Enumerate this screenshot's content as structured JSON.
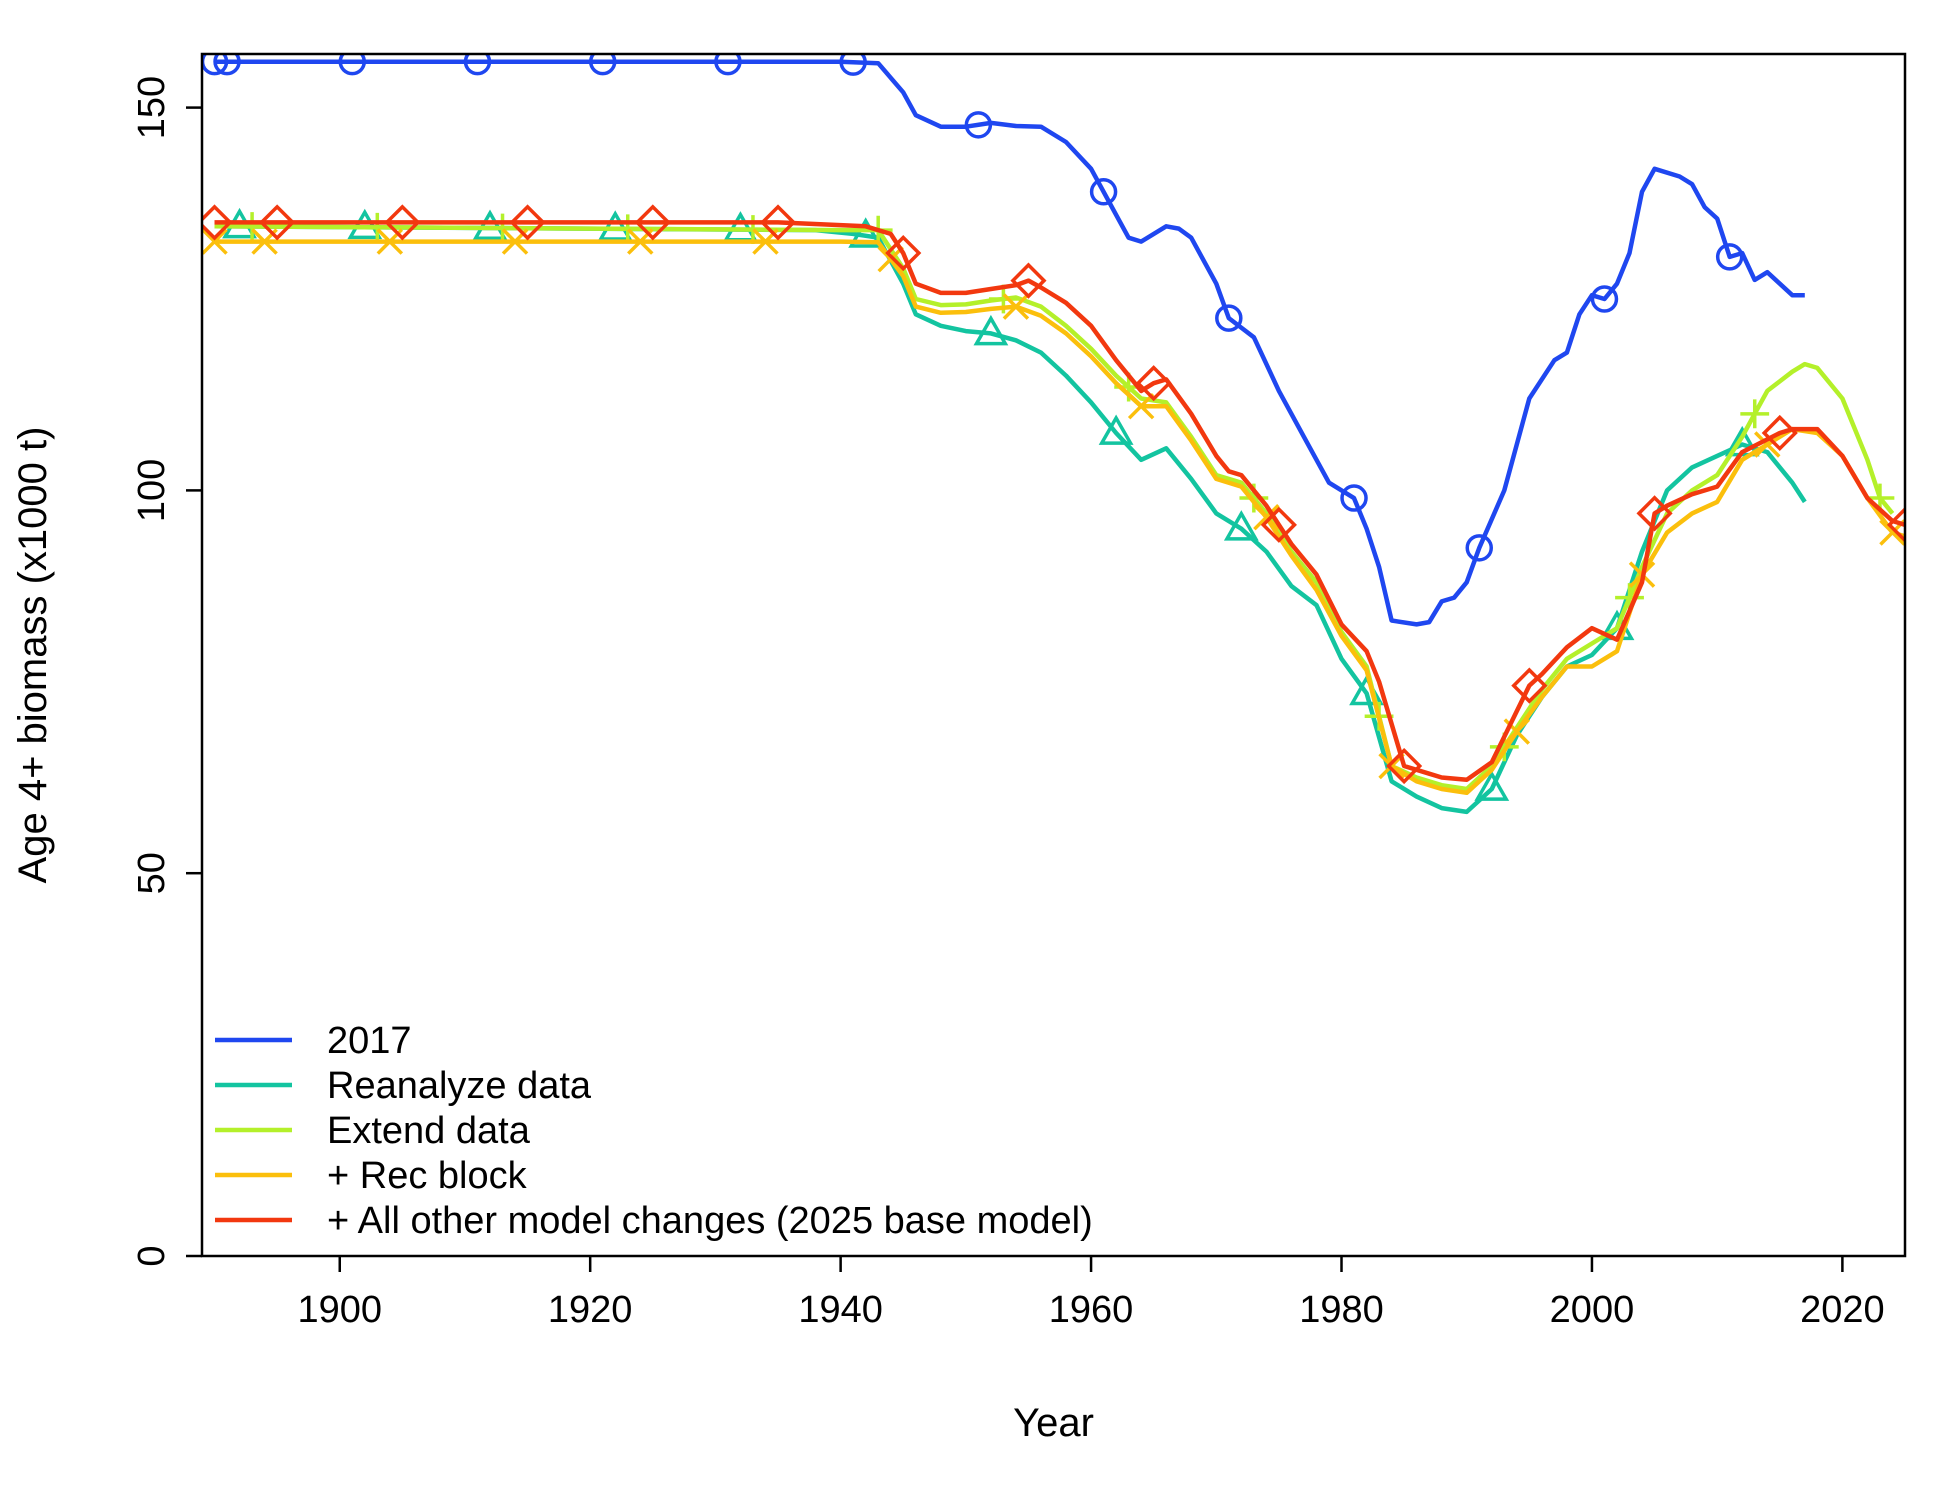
{
  "chart_data": {
    "type": "line",
    "xlabel": "Year",
    "ylabel": "Age 4+ biomass (x1000 t)",
    "xlim": [
      1889,
      2025
    ],
    "ylim": [
      0,
      157
    ],
    "xticks": [
      1900,
      1920,
      1940,
      1960,
      1980,
      2000,
      2020
    ],
    "yticks": [
      0,
      50,
      100,
      150
    ],
    "grid": false,
    "legend_position": "bottom-left",
    "series": [
      {
        "name": "2017",
        "color": "#1f47f0",
        "marker": "circle",
        "marker_x": [
          1890,
          1891,
          1901,
          1911,
          1921,
          1931,
          1941,
          1951,
          1961,
          1971,
          1981,
          1991,
          2001,
          2011
        ],
        "points": [
          [
            1890,
            156
          ],
          [
            1940,
            156
          ],
          [
            1943,
            155.8
          ],
          [
            1945,
            152
          ],
          [
            1946,
            149
          ],
          [
            1948,
            147.5
          ],
          [
            1950,
            147.5
          ],
          [
            1952,
            148
          ],
          [
            1954,
            147.6
          ],
          [
            1956,
            147.5
          ],
          [
            1958,
            145.5
          ],
          [
            1960,
            142
          ],
          [
            1962,
            136
          ],
          [
            1963,
            133
          ],
          [
            1964,
            132.5
          ],
          [
            1966,
            134.5
          ],
          [
            1967,
            134.2
          ],
          [
            1968,
            133
          ],
          [
            1970,
            127
          ],
          [
            1971,
            122.5
          ],
          [
            1973,
            120
          ],
          [
            1975,
            113
          ],
          [
            1977,
            107
          ],
          [
            1979,
            101
          ],
          [
            1981,
            99
          ],
          [
            1982,
            95
          ],
          [
            1983,
            90
          ],
          [
            1984,
            83
          ],
          [
            1986,
            82.5
          ],
          [
            1987,
            82.8
          ],
          [
            1988,
            85.5
          ],
          [
            1989,
            86
          ],
          [
            1990,
            88
          ],
          [
            1991,
            92.5
          ],
          [
            1993,
            100
          ],
          [
            1995,
            112
          ],
          [
            1997,
            117
          ],
          [
            1998,
            118
          ],
          [
            1999,
            123
          ],
          [
            2000,
            125.5
          ],
          [
            2001,
            125
          ],
          [
            2002,
            127
          ],
          [
            2003,
            131
          ],
          [
            2004,
            139
          ],
          [
            2005,
            142
          ],
          [
            2007,
            141
          ],
          [
            2008,
            140
          ],
          [
            2009,
            137
          ],
          [
            2010,
            135.5
          ],
          [
            2011,
            130.5
          ],
          [
            2012,
            131
          ],
          [
            2013,
            127.5
          ],
          [
            2014,
            128.5
          ],
          [
            2015,
            127
          ],
          [
            2016,
            125.5
          ],
          [
            2017,
            125.5
          ]
        ]
      },
      {
        "name": "Reanalyze data",
        "color": "#13c4a0",
        "marker": "triangle",
        "marker_x": [
          1892,
          1902,
          1912,
          1922,
          1932,
          1942,
          1952,
          1962,
          1972,
          1982,
          1992,
          2002,
          2012
        ],
        "points": [
          [
            1890,
            134.5
          ],
          [
            1938,
            134
          ],
          [
            1941,
            133.5
          ],
          [
            1943,
            133
          ],
          [
            1945,
            127
          ],
          [
            1946,
            123
          ],
          [
            1948,
            121.5
          ],
          [
            1950,
            120.8
          ],
          [
            1952,
            120.5
          ],
          [
            1954,
            119.6
          ],
          [
            1956,
            118
          ],
          [
            1958,
            115
          ],
          [
            1960,
            111.5
          ],
          [
            1962,
            107.5
          ],
          [
            1964,
            104
          ],
          [
            1966,
            105.5
          ],
          [
            1968,
            101.5
          ],
          [
            1970,
            97
          ],
          [
            1972,
            95
          ],
          [
            1974,
            92
          ],
          [
            1976,
            87.5
          ],
          [
            1978,
            85
          ],
          [
            1980,
            78
          ],
          [
            1982,
            73.5
          ],
          [
            1984,
            62
          ],
          [
            1986,
            60
          ],
          [
            1988,
            58.5
          ],
          [
            1990,
            58
          ],
          [
            1992,
            61
          ],
          [
            1994,
            68
          ],
          [
            1996,
            73
          ],
          [
            1998,
            77
          ],
          [
            2000,
            78.5
          ],
          [
            2002,
            82
          ],
          [
            2004,
            92
          ],
          [
            2006,
            100
          ],
          [
            2008,
            103
          ],
          [
            2010,
            104.5
          ],
          [
            2012,
            106
          ],
          [
            2014,
            105
          ],
          [
            2016,
            101
          ],
          [
            2017,
            98.5
          ]
        ]
      },
      {
        "name": "Extend data",
        "color": "#b4f02a",
        "marker": "plus",
        "marker_x": [
          1893,
          1903,
          1913,
          1923,
          1933,
          1943,
          1953,
          1963,
          1973,
          1983,
          1993,
          2003,
          2013,
          2023
        ],
        "points": [
          [
            1890,
            134.5
          ],
          [
            1940,
            134
          ],
          [
            1943,
            134
          ],
          [
            1945,
            129
          ],
          [
            1946,
            125
          ],
          [
            1948,
            124.2
          ],
          [
            1950,
            124.3
          ],
          [
            1952,
            124.8
          ],
          [
            1954,
            125.2
          ],
          [
            1956,
            124
          ],
          [
            1958,
            121.5
          ],
          [
            1960,
            118.5
          ],
          [
            1962,
            115
          ],
          [
            1964,
            112
          ],
          [
            1966,
            111.5
          ],
          [
            1968,
            107
          ],
          [
            1970,
            102
          ],
          [
            1972,
            101
          ],
          [
            1974,
            97
          ],
          [
            1976,
            92
          ],
          [
            1978,
            88
          ],
          [
            1980,
            81.5
          ],
          [
            1982,
            77
          ],
          [
            1984,
            64
          ],
          [
            1986,
            62.5
          ],
          [
            1988,
            61.5
          ],
          [
            1990,
            61
          ],
          [
            1992,
            64
          ],
          [
            1994,
            69
          ],
          [
            1996,
            74
          ],
          [
            1998,
            78
          ],
          [
            2000,
            80
          ],
          [
            2002,
            82
          ],
          [
            2004,
            90
          ],
          [
            2006,
            97
          ],
          [
            2008,
            100
          ],
          [
            2010,
            102
          ],
          [
            2012,
            107
          ],
          [
            2013,
            110
          ],
          [
            2014,
            113
          ],
          [
            2016,
            115.5
          ],
          [
            2017,
            116.5
          ],
          [
            2018,
            116
          ],
          [
            2020,
            112
          ],
          [
            2022,
            104
          ],
          [
            2023,
            99
          ],
          [
            2024,
            97
          ]
        ]
      },
      {
        "name": "+ Rec block",
        "color": "#fbbf0c",
        "marker": "x",
        "marker_x": [
          1890,
          1894,
          1904,
          1914,
          1924,
          1934,
          1944,
          1954,
          1964,
          1974,
          1984,
          1994,
          2004,
          2014,
          2024
        ],
        "points": [
          [
            1890,
            132.5
          ],
          [
            1940,
            132.5
          ],
          [
            1943,
            132.4
          ],
          [
            1945,
            128
          ],
          [
            1946,
            124
          ],
          [
            1948,
            123.2
          ],
          [
            1950,
            123.3
          ],
          [
            1952,
            123.7
          ],
          [
            1954,
            124
          ],
          [
            1956,
            122.8
          ],
          [
            1958,
            120.5
          ],
          [
            1960,
            117.5
          ],
          [
            1962,
            114
          ],
          [
            1964,
            111
          ],
          [
            1966,
            111
          ],
          [
            1968,
            106.5
          ],
          [
            1970,
            101.5
          ],
          [
            1972,
            100.5
          ],
          [
            1974,
            96.5
          ],
          [
            1976,
            91.5
          ],
          [
            1978,
            87
          ],
          [
            1980,
            81
          ],
          [
            1982,
            76.5
          ],
          [
            1984,
            64
          ],
          [
            1986,
            62
          ],
          [
            1988,
            61
          ],
          [
            1990,
            60.5
          ],
          [
            1992,
            63.5
          ],
          [
            1994,
            68.5
          ],
          [
            1996,
            73
          ],
          [
            1998,
            77
          ],
          [
            2000,
            77
          ],
          [
            2002,
            79
          ],
          [
            2004,
            89
          ],
          [
            2006,
            94.5
          ],
          [
            2008,
            97
          ],
          [
            2010,
            98.5
          ],
          [
            2012,
            104
          ],
          [
            2013,
            105
          ],
          [
            2014,
            106
          ],
          [
            2016,
            108
          ],
          [
            2018,
            107.5
          ],
          [
            2020,
            104.5
          ],
          [
            2022,
            99
          ],
          [
            2024,
            94.5
          ],
          [
            2025,
            94
          ]
        ]
      },
      {
        "name": "+ All other model changes (2025 base model)",
        "color": "#f2380f",
        "marker": "diamond",
        "marker_x": [
          1890,
          1895,
          1905,
          1915,
          1925,
          1935,
          1945,
          1955,
          1965,
          1975,
          1985,
          1995,
          2005,
          2015,
          2025
        ],
        "points": [
          [
            1890,
            135
          ],
          [
            1935,
            135
          ],
          [
            1942,
            134.5
          ],
          [
            1944,
            133.5
          ],
          [
            1945,
            131
          ],
          [
            1946,
            127
          ],
          [
            1948,
            125.8
          ],
          [
            1950,
            125.8
          ],
          [
            1952,
            126.3
          ],
          [
            1954,
            126.8
          ],
          [
            1955,
            127.4
          ],
          [
            1956,
            126.5
          ],
          [
            1958,
            124.5
          ],
          [
            1960,
            121.5
          ],
          [
            1962,
            117
          ],
          [
            1964,
            113
          ],
          [
            1965,
            114
          ],
          [
            1966,
            114.5
          ],
          [
            1968,
            110
          ],
          [
            1970,
            104.5
          ],
          [
            1971,
            102.5
          ],
          [
            1972,
            102
          ],
          [
            1974,
            98
          ],
          [
            1975,
            95.5
          ],
          [
            1976,
            93
          ],
          [
            1978,
            89
          ],
          [
            1980,
            82.5
          ],
          [
            1982,
            79
          ],
          [
            1983,
            75
          ],
          [
            1985,
            64
          ],
          [
            1987,
            63
          ],
          [
            1988,
            62.5
          ],
          [
            1990,
            62.2
          ],
          [
            1992,
            64.5
          ],
          [
            1995,
            74.5
          ],
          [
            1996,
            76
          ],
          [
            1998,
            79.5
          ],
          [
            2000,
            82
          ],
          [
            2002,
            80.5
          ],
          [
            2004,
            88
          ],
          [
            2005,
            97
          ],
          [
            2006,
            98
          ],
          [
            2008,
            99.5
          ],
          [
            2010,
            100.5
          ],
          [
            2012,
            105
          ],
          [
            2015,
            107.5
          ],
          [
            2016,
            108
          ],
          [
            2018,
            108
          ],
          [
            2020,
            104.5
          ],
          [
            2022,
            99
          ],
          [
            2024,
            96
          ],
          [
            2025,
            95.5
          ]
        ]
      }
    ]
  }
}
